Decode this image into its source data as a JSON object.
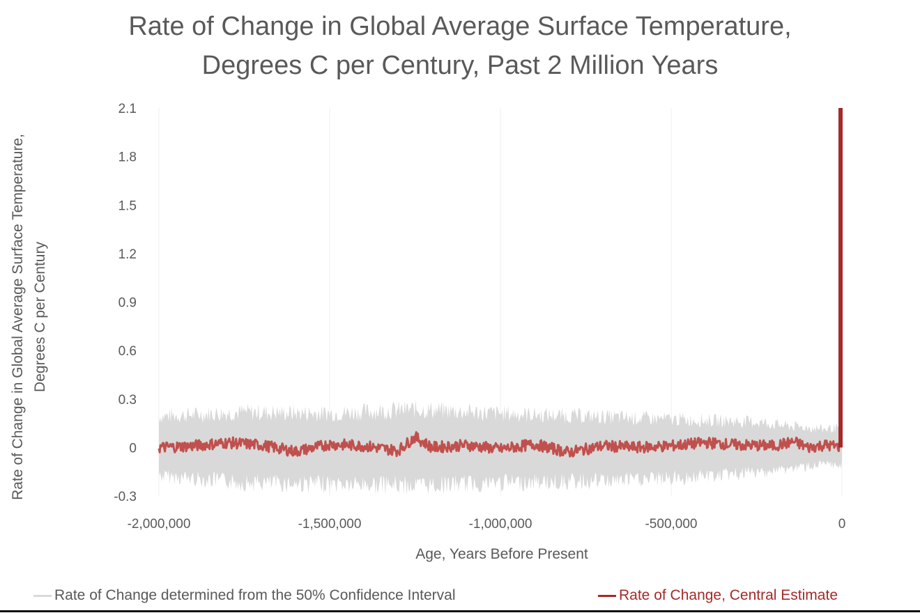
{
  "chart_data": {
    "type": "line",
    "title_lines": [
      "Rate of Change in Global Average Surface Temperature,",
      "Degrees C per Century, Past 2 Million Years"
    ],
    "ylabel_lines": [
      "Rate of Change in Global Average Surface Temperature,",
      "Degrees C per Century"
    ],
    "xlabel": "Age, Years Before Present",
    "xlim": [
      -2000000,
      0
    ],
    "ylim": [
      -0.3,
      2.1
    ],
    "x_ticks": [
      -2000000,
      -1500000,
      -1000000,
      -500000,
      0
    ],
    "x_tick_labels": [
      "-2,000,000",
      "-1,500,000",
      "-1,000,000",
      "-500,000",
      "0"
    ],
    "y_ticks": [
      -0.3,
      0,
      0.3,
      0.6,
      0.9,
      1.2,
      1.5,
      1.8,
      2.1
    ],
    "y_tick_labels": [
      "-0.3",
      "0",
      "0.3",
      "0.6",
      "0.9",
      "1.2",
      "1.5",
      "1.8",
      "2.1"
    ],
    "grid": "vertical",
    "legend_position": "bottom",
    "series": [
      {
        "name": "Rate of Change determined from the 50% Confidence Interval",
        "kind": "band",
        "color": "#d9d9d9",
        "x": [
          -2000000,
          -1750000,
          -1500000,
          -1250000,
          -1000000,
          -750000,
          -500000,
          -250000,
          -150000,
          -50000,
          -5000,
          0
        ],
        "upper": [
          0.22,
          0.25,
          0.24,
          0.27,
          0.24,
          0.22,
          0.2,
          0.18,
          0.15,
          0.13,
          0.14,
          0.1
        ],
        "lower": [
          -0.2,
          -0.25,
          -0.26,
          -0.27,
          -0.25,
          -0.24,
          -0.22,
          -0.18,
          -0.15,
          -0.12,
          -0.14,
          -0.1
        ]
      },
      {
        "name": "Rate of Change, Central Estimate",
        "kind": "line",
        "color": "#c0504d",
        "x": [
          -2000000,
          -1900000,
          -1800000,
          -1700000,
          -1600000,
          -1500000,
          -1400000,
          -1300000,
          -1250000,
          -1200000,
          -1100000,
          -1000000,
          -900000,
          -800000,
          -700000,
          -600000,
          -500000,
          -400000,
          -300000,
          -200000,
          -140000,
          -100000,
          -50000,
          -10000,
          -5000,
          0
        ],
        "values": [
          0.0,
          0.02,
          0.06,
          0.03,
          -0.05,
          0.04,
          0.02,
          -0.04,
          0.13,
          0.0,
          0.03,
          -0.02,
          0.04,
          -0.06,
          0.02,
          0.0,
          0.02,
          0.06,
          0.03,
          0.02,
          0.07,
          0.0,
          0.03,
          0.01,
          0.05,
          2.1
        ],
        "highlight_color": "#a52a2a"
      }
    ]
  }
}
